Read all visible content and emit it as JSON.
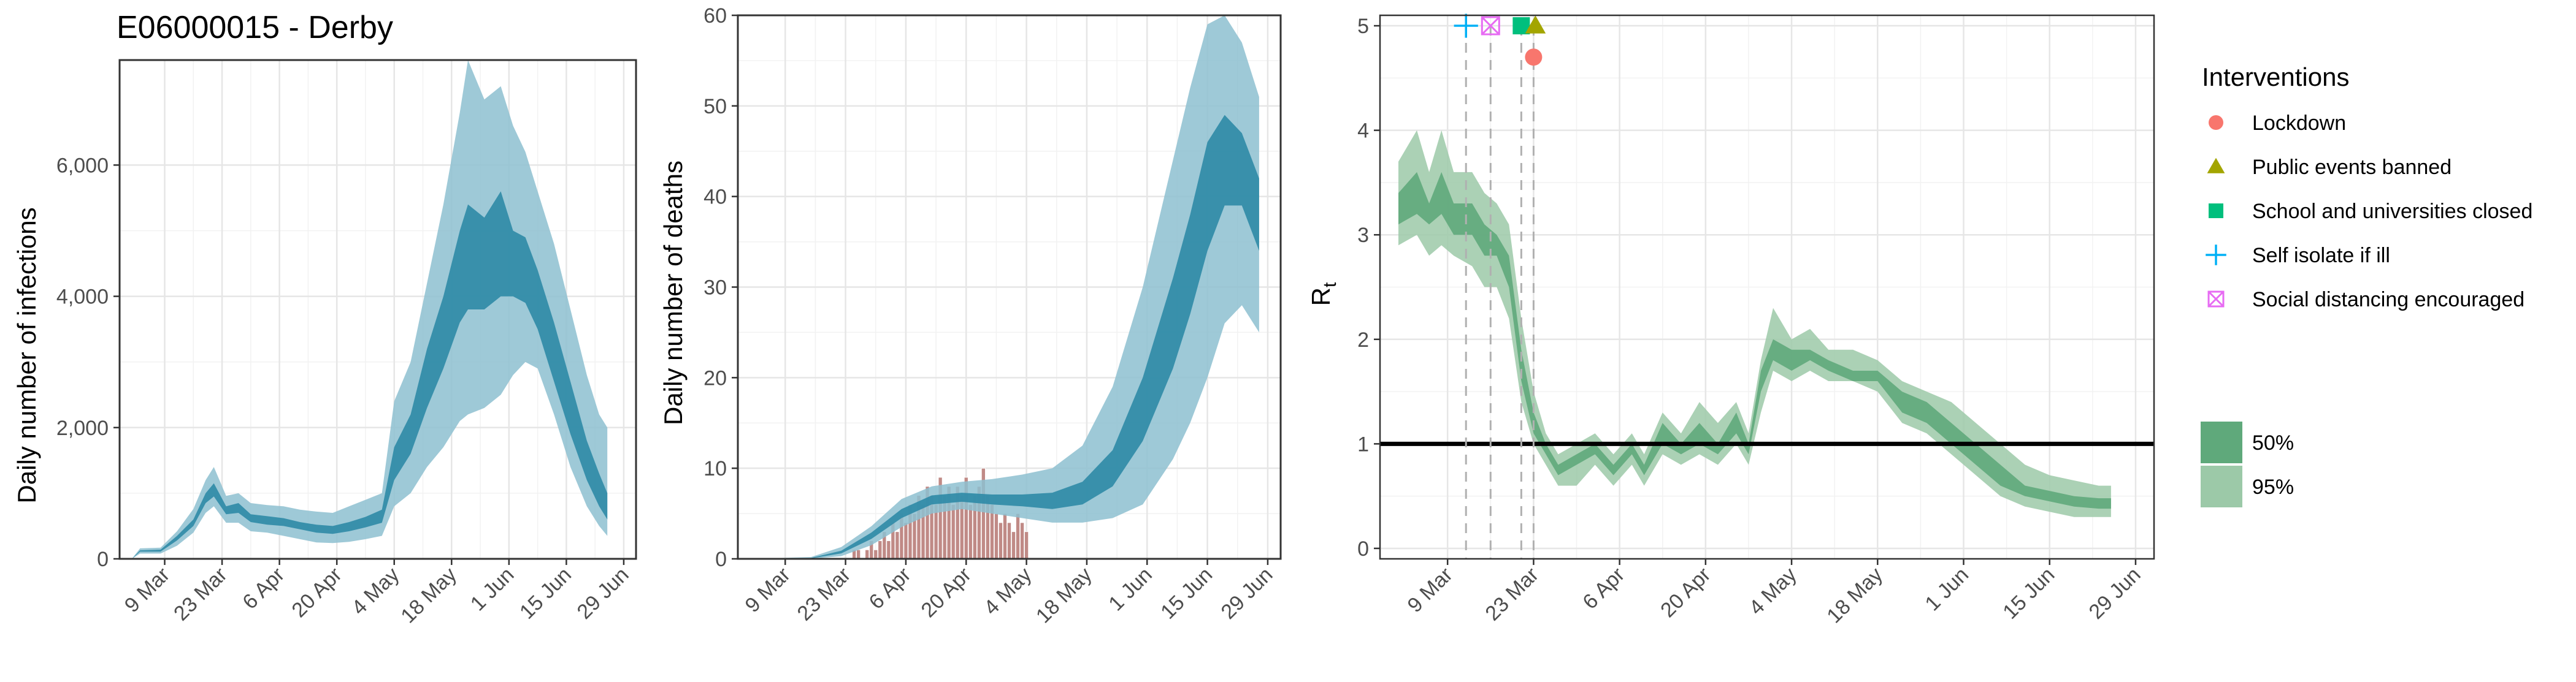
{
  "chart_data": [
    {
      "type": "area",
      "title": "E06000015 - Derby",
      "xlabel": "",
      "ylabel": "Daily number of infections",
      "x_ticks": [
        "9 Mar",
        "23 Mar",
        "6 Apr",
        "20 Apr",
        "4 May",
        "18 May",
        "1 Jun",
        "15 Jun",
        "29 Jun"
      ],
      "y_ticks": [
        "0",
        "2,000",
        "4,000",
        "6,000"
      ],
      "ylim": [
        0,
        7600
      ],
      "grid": true,
      "colors": {
        "band50": "#2e8aa6",
        "band95": "#8dbfd0"
      },
      "series_points": [
        {
          "x": "2020-03-01",
          "lo95": 0,
          "lo50": 0,
          "hi50": 0,
          "hi95": 0
        },
        {
          "x": "2020-03-03",
          "lo95": 80,
          "lo50": 110,
          "hi50": 130,
          "hi95": 160
        },
        {
          "x": "2020-03-08",
          "lo95": 80,
          "lo50": 110,
          "hi50": 140,
          "hi95": 170
        },
        {
          "x": "2020-03-12",
          "lo95": 200,
          "lo50": 280,
          "hi50": 350,
          "hi95": 420
        },
        {
          "x": "2020-03-16",
          "lo95": 400,
          "lo50": 500,
          "hi50": 600,
          "hi95": 760
        },
        {
          "x": "2020-03-19",
          "lo95": 700,
          "lo50": 850,
          "hi50": 1000,
          "hi95": 1200
        },
        {
          "x": "2020-03-21",
          "lo95": 800,
          "lo50": 950,
          "hi50": 1150,
          "hi95": 1400
        },
        {
          "x": "2020-03-24",
          "lo95": 550,
          "lo50": 680,
          "hi50": 800,
          "hi95": 960
        },
        {
          "x": "2020-03-27",
          "lo95": 550,
          "lo50": 700,
          "hi50": 850,
          "hi95": 1000
        },
        {
          "x": "2020-03-30",
          "lo95": 420,
          "lo50": 560,
          "hi50": 680,
          "hi95": 850
        },
        {
          "x": "2020-04-03",
          "lo95": 400,
          "lo50": 520,
          "hi50": 650,
          "hi95": 820
        },
        {
          "x": "2020-04-07",
          "lo95": 350,
          "lo50": 500,
          "hi50": 620,
          "hi95": 800
        },
        {
          "x": "2020-04-11",
          "lo95": 300,
          "lo50": 450,
          "hi50": 560,
          "hi95": 750
        },
        {
          "x": "2020-04-15",
          "lo95": 250,
          "lo50": 400,
          "hi50": 520,
          "hi95": 720
        },
        {
          "x": "2020-04-19",
          "lo95": 240,
          "lo50": 380,
          "hi50": 500,
          "hi95": 700
        },
        {
          "x": "2020-04-23",
          "lo95": 260,
          "lo50": 420,
          "hi50": 560,
          "hi95": 800
        },
        {
          "x": "2020-04-27",
          "lo95": 300,
          "lo50": 480,
          "hi50": 640,
          "hi95": 900
        },
        {
          "x": "2020-05-01",
          "lo95": 350,
          "lo50": 550,
          "hi50": 750,
          "hi95": 1000
        },
        {
          "x": "2020-05-04",
          "lo95": 800,
          "lo50": 1200,
          "hi50": 1700,
          "hi95": 2400
        },
        {
          "x": "2020-05-08",
          "lo95": 1000,
          "lo50": 1600,
          "hi50": 2200,
          "hi95": 3000
        },
        {
          "x": "2020-05-12",
          "lo95": 1400,
          "lo50": 2300,
          "hi50": 3200,
          "hi95": 4200
        },
        {
          "x": "2020-05-16",
          "lo95": 1700,
          "lo50": 2900,
          "hi50": 4000,
          "hi95": 5400
        },
        {
          "x": "2020-05-20",
          "lo95": 2100,
          "lo50": 3600,
          "hi50": 5000,
          "hi95": 6800
        },
        {
          "x": "2020-05-22",
          "lo95": 2200,
          "lo50": 3800,
          "hi50": 5400,
          "hi95": 7600
        },
        {
          "x": "2020-05-26",
          "lo95": 2300,
          "lo50": 3800,
          "hi50": 5200,
          "hi95": 7000
        },
        {
          "x": "2020-05-30",
          "lo95": 2500,
          "lo50": 4000,
          "hi50": 5600,
          "hi95": 7200
        },
        {
          "x": "2020-06-02",
          "lo95": 2800,
          "lo50": 4000,
          "hi50": 5000,
          "hi95": 6600
        },
        {
          "x": "2020-06-05",
          "lo95": 3000,
          "lo50": 3900,
          "hi50": 4900,
          "hi95": 6200
        },
        {
          "x": "2020-06-08",
          "lo95": 2900,
          "lo50": 3500,
          "hi50": 4400,
          "hi95": 5600
        },
        {
          "x": "2020-06-12",
          "lo95": 2200,
          "lo50": 2700,
          "hi50": 3600,
          "hi95": 4800
        },
        {
          "x": "2020-06-16",
          "lo95": 1400,
          "lo50": 1900,
          "hi50": 2700,
          "hi95": 3800
        },
        {
          "x": "2020-06-20",
          "lo95": 800,
          "lo50": 1200,
          "hi50": 1800,
          "hi95": 2800
        },
        {
          "x": "2020-06-23",
          "lo95": 500,
          "lo50": 800,
          "hi50": 1300,
          "hi95": 2200
        },
        {
          "x": "2020-06-25",
          "lo95": 350,
          "lo50": 600,
          "hi50": 1000,
          "hi95": 2000
        }
      ]
    },
    {
      "type": "area",
      "title": "",
      "xlabel": "",
      "ylabel": "Daily number of deaths",
      "x_ticks": [
        "9 Mar",
        "23 Mar",
        "6 Apr",
        "20 Apr",
        "4 May",
        "18 May",
        "1 Jun",
        "15 Jun",
        "29 Jun"
      ],
      "y_ticks": [
        "0",
        "10",
        "20",
        "30",
        "40",
        "50",
        "60"
      ],
      "ylim": [
        0,
        60
      ],
      "grid": true,
      "colors": {
        "band50": "#2e8aa6",
        "band95": "#8dbfd0",
        "bars": "#c08a86"
      },
      "series_points": [
        {
          "x": "2020-03-01",
          "lo95": 0,
          "lo50": 0,
          "hi50": 0,
          "hi95": 0
        },
        {
          "x": "2020-03-15",
          "lo95": 0,
          "lo50": 0.05,
          "hi50": 0.1,
          "hi95": 0.2
        },
        {
          "x": "2020-03-22",
          "lo95": 0.3,
          "lo50": 0.6,
          "hi50": 0.9,
          "hi95": 1.3
        },
        {
          "x": "2020-03-29",
          "lo95": 1.5,
          "lo50": 2.2,
          "hi50": 2.9,
          "hi95": 3.6
        },
        {
          "x": "2020-04-05",
          "lo95": 3.5,
          "lo50": 4.5,
          "hi50": 5.5,
          "hi95": 6.6
        },
        {
          "x": "2020-04-12",
          "lo95": 5,
          "lo50": 6,
          "hi50": 7,
          "hi95": 8
        },
        {
          "x": "2020-04-19",
          "lo95": 5.5,
          "lo50": 6.3,
          "hi50": 7.3,
          "hi95": 8.5
        },
        {
          "x": "2020-04-26",
          "lo95": 5,
          "lo50": 6,
          "hi50": 7.1,
          "hi95": 8.8
        },
        {
          "x": "2020-05-03",
          "lo95": 4.5,
          "lo50": 5.8,
          "hi50": 7.1,
          "hi95": 9.3
        },
        {
          "x": "2020-05-10",
          "lo95": 4,
          "lo50": 5.5,
          "hi50": 7.3,
          "hi95": 10
        },
        {
          "x": "2020-05-17",
          "lo95": 4,
          "lo50": 6,
          "hi50": 8.5,
          "hi95": 12.5
        },
        {
          "x": "2020-05-24",
          "lo95": 4.5,
          "lo50": 8,
          "hi50": 12,
          "hi95": 19
        },
        {
          "x": "2020-05-31",
          "lo95": 6,
          "lo50": 13,
          "hi50": 20,
          "hi95": 30
        },
        {
          "x": "2020-06-07",
          "lo95": 11,
          "lo50": 21,
          "hi50": 31,
          "hi95": 44
        },
        {
          "x": "2020-06-11",
          "lo95": 15,
          "lo50": 27,
          "hi50": 38,
          "hi95": 52
        },
        {
          "x": "2020-06-15",
          "lo95": 20,
          "lo50": 34,
          "hi50": 46,
          "hi95": 59
        },
        {
          "x": "2020-06-19",
          "lo95": 26,
          "lo50": 39,
          "hi50": 49,
          "hi95": 60
        },
        {
          "x": "2020-06-23",
          "lo95": 28,
          "lo50": 39,
          "hi50": 47,
          "hi95": 57
        },
        {
          "x": "2020-06-27",
          "lo95": 25,
          "lo50": 34,
          "hi50": 42,
          "hi95": 51
        }
      ],
      "observed_deaths": {
        "start": "2020-03-24",
        "values": [
          0,
          1,
          1,
          0,
          1,
          2,
          1,
          2,
          3,
          2,
          4,
          3,
          5,
          4,
          6,
          5,
          7,
          6,
          8,
          7,
          6,
          9,
          7,
          8,
          6,
          8,
          7,
          9,
          6,
          7,
          8,
          10,
          7,
          6,
          5,
          4,
          5,
          4,
          3,
          5,
          4,
          3
        ]
      }
    },
    {
      "type": "area",
      "title": "",
      "xlabel": "",
      "ylabel": "R",
      "ylabel_subscript": "t",
      "x_ticks": [
        "9 Mar",
        "23 Mar",
        "6 Apr",
        "20 Apr",
        "4 May",
        "18 May",
        "1 Jun",
        "15 Jun",
        "29 Jun"
      ],
      "y_ticks": [
        "0",
        "1",
        "2",
        "3",
        "4",
        "5"
      ],
      "ylim": [
        -0.1,
        5.1
      ],
      "grid": true,
      "reference_line": 1,
      "colors": {
        "band50": "#5fa97b",
        "band95": "#9cc9a8",
        "line": "#000000"
      },
      "series_points": [
        {
          "x": "2020-03-01",
          "lo95": 2.9,
          "lo50": 3.1,
          "hi50": 3.4,
          "hi95": 3.7
        },
        {
          "x": "2020-03-04",
          "lo95": 3.0,
          "lo50": 3.2,
          "hi50": 3.6,
          "hi95": 4.0
        },
        {
          "x": "2020-03-06",
          "lo95": 2.8,
          "lo50": 3.1,
          "hi50": 3.3,
          "hi95": 3.6
        },
        {
          "x": "2020-03-08",
          "lo95": 2.9,
          "lo50": 3.2,
          "hi50": 3.6,
          "hi95": 4.0
        },
        {
          "x": "2020-03-10",
          "lo95": 2.8,
          "lo50": 3.0,
          "hi50": 3.3,
          "hi95": 3.6
        },
        {
          "x": "2020-03-13",
          "lo95": 2.7,
          "lo50": 3.0,
          "hi50": 3.3,
          "hi95": 3.6
        },
        {
          "x": "2020-03-15",
          "lo95": 2.5,
          "lo50": 2.8,
          "hi50": 3.1,
          "hi95": 3.4
        },
        {
          "x": "2020-03-17",
          "lo95": 2.5,
          "lo50": 2.8,
          "hi50": 3.0,
          "hi95": 3.3
        },
        {
          "x": "2020-03-19",
          "lo95": 2.2,
          "lo50": 2.5,
          "hi50": 2.8,
          "hi95": 3.1
        },
        {
          "x": "2020-03-21",
          "lo95": 1.4,
          "lo50": 1.6,
          "hi50": 1.9,
          "hi95": 2.2
        },
        {
          "x": "2020-03-23",
          "lo95": 1.0,
          "lo50": 1.1,
          "hi50": 1.3,
          "hi95": 1.5
        },
        {
          "x": "2020-03-25",
          "lo95": 0.8,
          "lo50": 0.9,
          "hi50": 1.0,
          "hi95": 1.1
        },
        {
          "x": "2020-03-27",
          "lo95": 0.6,
          "lo50": 0.7,
          "hi50": 0.8,
          "hi95": 0.9
        },
        {
          "x": "2020-03-30",
          "lo95": 0.6,
          "lo50": 0.8,
          "hi50": 0.9,
          "hi95": 1.0
        },
        {
          "x": "2020-04-02",
          "lo95": 0.8,
          "lo50": 0.9,
          "hi50": 1.0,
          "hi95": 1.1
        },
        {
          "x": "2020-04-05",
          "lo95": 0.6,
          "lo50": 0.7,
          "hi50": 0.8,
          "hi95": 0.9
        },
        {
          "x": "2020-04-08",
          "lo95": 0.8,
          "lo50": 0.9,
          "hi50": 1.0,
          "hi95": 1.1
        },
        {
          "x": "2020-04-10",
          "lo95": 0.6,
          "lo50": 0.7,
          "hi50": 0.8,
          "hi95": 0.9
        },
        {
          "x": "2020-04-13",
          "lo95": 0.9,
          "lo50": 1.0,
          "hi50": 1.2,
          "hi95": 1.3
        },
        {
          "x": "2020-04-16",
          "lo95": 0.8,
          "lo50": 0.9,
          "hi50": 1.0,
          "hi95": 1.1
        },
        {
          "x": "2020-04-19",
          "lo95": 0.9,
          "lo50": 1.0,
          "hi50": 1.2,
          "hi95": 1.4
        },
        {
          "x": "2020-04-22",
          "lo95": 0.8,
          "lo50": 0.9,
          "hi50": 1.0,
          "hi95": 1.2
        },
        {
          "x": "2020-04-25",
          "lo95": 1.0,
          "lo50": 1.1,
          "hi50": 1.3,
          "hi95": 1.4
        },
        {
          "x": "2020-04-27",
          "lo95": 0.8,
          "lo50": 0.9,
          "hi50": 1.0,
          "hi95": 1.1
        },
        {
          "x": "2020-04-29",
          "lo95": 1.3,
          "lo50": 1.5,
          "hi50": 1.7,
          "hi95": 1.8
        },
        {
          "x": "2020-05-01",
          "lo95": 1.7,
          "lo50": 1.8,
          "hi50": 2.0,
          "hi95": 2.3
        },
        {
          "x": "2020-05-04",
          "lo95": 1.6,
          "lo50": 1.7,
          "hi50": 1.9,
          "hi95": 2.0
        },
        {
          "x": "2020-05-07",
          "lo95": 1.7,
          "lo50": 1.8,
          "hi50": 1.9,
          "hi95": 2.1
        },
        {
          "x": "2020-05-10",
          "lo95": 1.6,
          "lo50": 1.7,
          "hi50": 1.8,
          "hi95": 1.9
        },
        {
          "x": "2020-05-14",
          "lo95": 1.6,
          "lo50": 1.6,
          "hi50": 1.7,
          "hi95": 1.9
        },
        {
          "x": "2020-05-18",
          "lo95": 1.5,
          "lo50": 1.6,
          "hi50": 1.7,
          "hi95": 1.8
        },
        {
          "x": "2020-05-22",
          "lo95": 1.2,
          "lo50": 1.3,
          "hi50": 1.5,
          "hi95": 1.6
        },
        {
          "x": "2020-05-26",
          "lo95": 1.1,
          "lo50": 1.2,
          "hi50": 1.4,
          "hi95": 1.5
        },
        {
          "x": "2020-05-30",
          "lo95": 0.9,
          "lo50": 1.0,
          "hi50": 1.2,
          "hi95": 1.4
        },
        {
          "x": "2020-06-03",
          "lo95": 0.7,
          "lo50": 0.8,
          "hi50": 1.0,
          "hi95": 1.2
        },
        {
          "x": "2020-06-07",
          "lo95": 0.5,
          "lo50": 0.6,
          "hi50": 0.8,
          "hi95": 1.0
        },
        {
          "x": "2020-06-11",
          "lo95": 0.4,
          "lo50": 0.5,
          "hi50": 0.6,
          "hi95": 0.8
        },
        {
          "x": "2020-06-15",
          "lo95": 0.35,
          "lo50": 0.45,
          "hi50": 0.55,
          "hi95": 0.7
        },
        {
          "x": "2020-06-19",
          "lo95": 0.3,
          "lo50": 0.4,
          "hi50": 0.5,
          "hi95": 0.65
        },
        {
          "x": "2020-06-23",
          "lo95": 0.3,
          "lo50": 0.38,
          "hi50": 0.48,
          "hi95": 0.6
        },
        {
          "x": "2020-06-25",
          "lo95": 0.3,
          "lo50": 0.38,
          "hi50": 0.48,
          "hi95": 0.6
        }
      ],
      "interventions": [
        {
          "name": "Self isolate if ill",
          "date": "2020-03-12",
          "symbol": "plus",
          "color": "#00b0f6",
          "y": 5.0
        },
        {
          "name": "Social distancing encouraged",
          "date": "2020-03-16",
          "symbol": "squarex",
          "color": "#e76bf3",
          "y": 5.0
        },
        {
          "name": "School and universities closed",
          "date": "2020-03-21",
          "symbol": "square",
          "color": "#00bf7d",
          "y": 5.0
        },
        {
          "name": "Public events banned",
          "date": "2020-03-23",
          "symbol": "triangle",
          "color": "#a3a500",
          "y": 5.0
        },
        {
          "name": "Lockdown",
          "date": "2020-03-23",
          "symbol": "circle",
          "color": "#f8766d",
          "y": 4.7
        }
      ]
    }
  ],
  "legend": {
    "interventions_title": "Interventions",
    "interventions": [
      {
        "label": "Lockdown",
        "symbol": "circle",
        "color": "#f8766d"
      },
      {
        "label": "Public events banned",
        "symbol": "triangle",
        "color": "#a3a500"
      },
      {
        "label": "School and universities closed",
        "symbol": "square",
        "color": "#00bf7d"
      },
      {
        "label": "Self isolate if ill",
        "symbol": "plus",
        "color": "#00b0f6"
      },
      {
        "label": "Social distancing encouraged",
        "symbol": "squarex",
        "color": "#e76bf3"
      }
    ],
    "bands": [
      {
        "label": "50%",
        "color": "#5fa97b"
      },
      {
        "label": "95%",
        "color": "#9cc9a8"
      }
    ]
  }
}
